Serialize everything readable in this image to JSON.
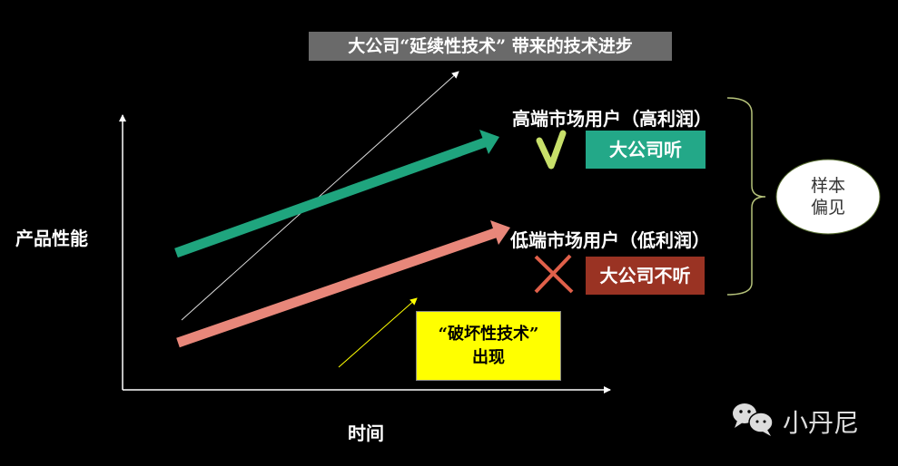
{
  "title": "大公司“延续性技术” 带来的技术进步",
  "y_axis_label": "产品性能",
  "x_axis_label": "时间",
  "high_end": {
    "label": "高端市场用户（高利润）",
    "verdict_icon": "check-icon",
    "box_label": "大公司听",
    "box_color": "#23a888"
  },
  "low_end": {
    "label": "低端市场用户（低利润）",
    "verdict_icon": "cross-icon",
    "box_label": "大公司不听",
    "box_color": "#9a3323"
  },
  "disruptive": {
    "line1": "“破坏性技术”",
    "line2": "出现",
    "box_color": "#ffff00"
  },
  "bias": {
    "line1": "样本",
    "line2": "偏见"
  },
  "watermark": {
    "icon": "wechat-icon",
    "text": "小丹尼"
  },
  "colors": {
    "sustaining_arrow": "#1fa57e",
    "low_arrow": "#e8877a",
    "check": "#c8e06a",
    "cross": "#e0604a",
    "brace": "#b5c27a"
  }
}
